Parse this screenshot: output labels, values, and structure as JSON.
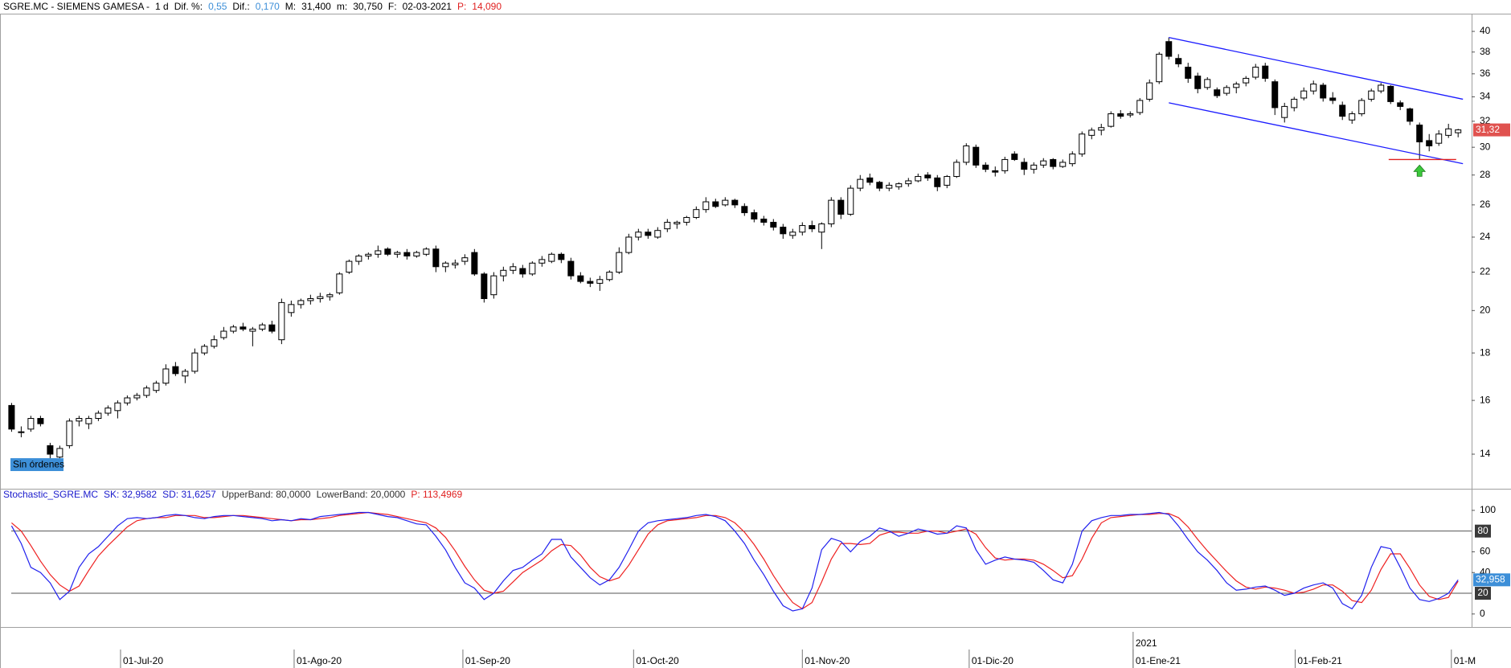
{
  "chart_data": [
    {
      "type": "candlestick",
      "title": [
        {
          "text": "SGRE.MC - SIEMENS GAMESA -",
          "color": "#000000"
        },
        {
          "text": "1 d",
          "color": "#000000"
        },
        {
          "text": "Dif. %:",
          "color": "#000000"
        },
        {
          "text": "0,55",
          "color": "#3d8fd8"
        },
        {
          "text": "Dif.:",
          "color": "#000000"
        },
        {
          "text": "0,170",
          "color": "#3d8fd8"
        },
        {
          "text": "M:",
          "color": "#000000"
        },
        {
          "text": "31,400",
          "color": "#000000"
        },
        {
          "text": "m:",
          "color": "#000000"
        },
        {
          "text": "30,750",
          "color": "#000000"
        },
        {
          "text": "F:",
          "color": "#000000"
        },
        {
          "text": "02-03-2021",
          "color": "#000000"
        },
        {
          "text": "P:",
          "color": "#e02020"
        },
        {
          "text": "14,090",
          "color": "#e02020"
        }
      ],
      "log": true,
      "xlim": [
        -1.2,
        151.4
      ],
      "ylim": [
        12.9,
        41.8
      ],
      "yticks": [
        14,
        16,
        18,
        20,
        22,
        24,
        26,
        28,
        30,
        32,
        34,
        36,
        38,
        40
      ],
      "up_color": "#ffffff",
      "down_color": "#000000",
      "open": [
        15.8,
        14.8,
        14.9,
        15.3,
        14.3,
        13.9,
        14.3,
        15.2,
        15.1,
        15.3,
        15.5,
        15.6,
        15.9,
        16.1,
        16.2,
        16.4,
        16.7,
        17.4,
        17.0,
        17.2,
        18.0,
        18.3,
        18.7,
        19.0,
        19.2,
        19.0,
        19.1,
        19.3,
        18.6,
        19.9,
        20.3,
        20.5,
        20.6,
        20.7,
        20.9,
        22.0,
        22.6,
        22.9,
        23.0,
        23.3,
        23.0,
        23.1,
        22.9,
        23.0,
        23.3,
        22.3,
        22.4,
        22.6,
        23.1,
        21.9,
        20.8,
        21.8,
        22.1,
        22.2,
        21.9,
        22.5,
        22.6,
        23.0,
        22.6,
        21.8,
        21.5,
        21.4,
        21.6,
        22.0,
        23.1,
        24.0,
        24.3,
        24.0,
        24.5,
        24.8,
        24.9,
        25.2,
        25.7,
        26.2,
        26.0,
        26.3,
        25.9,
        25.5,
        25.1,
        24.9,
        24.6,
        24.1,
        24.3,
        24.7,
        24.3,
        24.8,
        26.3,
        25.4,
        27.1,
        27.8,
        27.5,
        27.1,
        27.2,
        27.4,
        27.6,
        28.0,
        27.8,
        27.3,
        27.9,
        28.9,
        30.0,
        28.7,
        28.3,
        28.3,
        29.5,
        28.9,
        28.4,
        28.7,
        29.1,
        28.6,
        28.8,
        29.5,
        30.9,
        31.3,
        31.6,
        32.6,
        32.5,
        32.7,
        33.8,
        35.3,
        39.0,
        37.4,
        36.6,
        35.8,
        34.8,
        34.6,
        34.3,
        34.8,
        35.2,
        35.7,
        36.7,
        35.3,
        32.3,
        33.1,
        33.9,
        34.5,
        35.0,
        33.9,
        33.3,
        32.1,
        32.6,
        33.8,
        34.5,
        34.9,
        33.5,
        33.0,
        31.7,
        30.5,
        30.3,
        30.9,
        31.1
      ],
      "high": [
        15.9,
        15.0,
        15.4,
        15.4,
        14.4,
        14.3,
        15.3,
        15.4,
        15.4,
        15.6,
        15.8,
        16.0,
        16.2,
        16.3,
        16.6,
        16.8,
        17.5,
        17.6,
        17.3,
        18.2,
        18.4,
        18.8,
        19.2,
        19.3,
        19.4,
        19.2,
        19.4,
        19.5,
        20.6,
        20.5,
        20.6,
        20.8,
        20.9,
        20.9,
        22.0,
        22.7,
        23.0,
        23.1,
        23.5,
        23.4,
        23.2,
        23.3,
        23.2,
        23.4,
        23.5,
        22.6,
        22.7,
        23.0,
        23.3,
        22.0,
        22.0,
        22.3,
        22.5,
        22.4,
        22.6,
        22.9,
        23.1,
        23.1,
        22.8,
        22.0,
        21.7,
        21.8,
        22.1,
        23.4,
        24.2,
        24.5,
        24.5,
        24.6,
        25.1,
        25.0,
        25.3,
        25.9,
        26.5,
        26.4,
        26.5,
        26.4,
        26.1,
        25.7,
        25.3,
        25.1,
        24.8,
        24.5,
        24.9,
        25.0,
        24.9,
        26.5,
        26.5,
        27.3,
        28.0,
        28.1,
        27.6,
        27.5,
        27.5,
        27.8,
        28.1,
        28.2,
        28.0,
        28.0,
        29.1,
        30.3,
        30.2,
        28.9,
        28.6,
        29.3,
        29.7,
        29.2,
        28.9,
        29.2,
        29.2,
        29.1,
        29.7,
        31.2,
        31.5,
        31.8,
        32.8,
        32.9,
        32.8,
        33.9,
        35.5,
        38.0,
        39.4,
        37.8,
        37.0,
        36.1,
        35.7,
        34.8,
        35.0,
        35.3,
        35.8,
        36.9,
        37.0,
        35.5,
        33.5,
        34.0,
        34.8,
        35.4,
        35.2,
        34.4,
        33.6,
        32.8,
        33.9,
        34.7,
        35.2,
        35.0,
        33.7,
        33.1,
        31.9,
        31.0,
        31.3,
        31.8,
        31.4
      ],
      "low": [
        14.8,
        14.6,
        14.8,
        15.0,
        13.8,
        13.8,
        14.2,
        15.0,
        14.9,
        15.2,
        15.4,
        15.3,
        15.8,
        16.0,
        16.1,
        16.3,
        16.6,
        17.0,
        16.7,
        17.1,
        17.9,
        18.2,
        18.6,
        18.9,
        19.0,
        18.3,
        19.0,
        18.9,
        18.4,
        19.7,
        20.1,
        20.3,
        20.4,
        20.5,
        20.8,
        21.9,
        22.4,
        22.7,
        22.8,
        22.9,
        22.8,
        22.7,
        22.8,
        22.9,
        22.0,
        22.0,
        22.2,
        22.4,
        21.8,
        20.4,
        20.6,
        21.5,
        21.9,
        21.7,
        21.8,
        22.3,
        22.5,
        22.5,
        21.6,
        21.4,
        21.2,
        21.0,
        21.5,
        21.9,
        23.0,
        23.8,
        23.9,
        23.9,
        24.3,
        24.5,
        24.7,
        25.1,
        25.5,
        25.8,
        25.9,
        25.8,
        25.3,
        24.9,
        24.7,
        24.4,
        23.9,
        23.9,
        24.1,
        24.3,
        23.3,
        24.6,
        25.1,
        25.3,
        26.9,
        27.3,
        26.9,
        26.9,
        27.0,
        27.2,
        27.5,
        27.6,
        26.9,
        27.1,
        27.8,
        28.7,
        28.5,
        28.2,
        27.9,
        28.1,
        29.0,
        28.0,
        28.1,
        28.5,
        28.4,
        28.5,
        28.6,
        29.3,
        30.6,
        30.9,
        31.5,
        32.2,
        32.3,
        32.5,
        33.6,
        35.1,
        37.3,
        36.6,
        35.2,
        34.3,
        34.6,
        33.9,
        34.1,
        34.3,
        34.9,
        35.5,
        35.3,
        32.5,
        31.9,
        32.8,
        33.7,
        34.2,
        33.6,
        33.4,
        32.1,
        31.8,
        32.4,
        33.6,
        34.3,
        33.4,
        32.9,
        31.7,
        29.1,
        29.7,
        30.1,
        30.7,
        30.75
      ],
      "close": [
        14.9,
        14.8,
        15.3,
        15.1,
        14.0,
        14.2,
        15.2,
        15.3,
        15.3,
        15.5,
        15.7,
        15.9,
        16.1,
        16.2,
        16.5,
        16.7,
        17.3,
        17.1,
        17.2,
        18.0,
        18.3,
        18.6,
        19.0,
        19.2,
        19.1,
        19.1,
        19.3,
        19.0,
        20.4,
        20.3,
        20.5,
        20.6,
        20.7,
        20.8,
        21.9,
        22.6,
        22.9,
        23.0,
        23.2,
        23.0,
        23.1,
        22.9,
        23.1,
        23.3,
        22.3,
        22.5,
        22.5,
        22.8,
        21.9,
        20.6,
        21.8,
        22.1,
        22.3,
        21.9,
        22.5,
        22.7,
        23.0,
        22.7,
        21.8,
        21.5,
        21.4,
        21.6,
        22.0,
        23.1,
        24.0,
        24.3,
        24.1,
        24.4,
        24.9,
        24.9,
        25.2,
        25.7,
        26.2,
        25.9,
        26.3,
        26.0,
        25.5,
        25.1,
        24.9,
        24.6,
        24.2,
        24.3,
        24.7,
        24.5,
        24.8,
        26.3,
        25.4,
        27.1,
        27.7,
        27.5,
        27.1,
        27.3,
        27.4,
        27.6,
        27.9,
        27.8,
        27.2,
        27.9,
        28.9,
        30.1,
        28.7,
        28.4,
        28.2,
        29.1,
        29.1,
        28.4,
        28.7,
        29.0,
        28.6,
        28.9,
        29.5,
        31.0,
        31.3,
        31.5,
        32.6,
        32.4,
        32.6,
        33.7,
        35.2,
        37.8,
        37.6,
        36.9,
        35.6,
        34.7,
        35.5,
        34.1,
        34.8,
        35.1,
        35.6,
        36.6,
        35.6,
        33.1,
        33.2,
        33.8,
        34.5,
        35.1,
        33.9,
        33.7,
        32.4,
        32.6,
        33.7,
        34.5,
        35.0,
        33.6,
        33.2,
        32.0,
        30.4,
        30.1,
        31.0,
        31.4,
        31.32
      ],
      "price_marker": {
        "value": 31.32,
        "label": "31,32",
        "color": "#e0524f"
      },
      "trendlines": [
        {
          "x": [
            120,
            150.5
          ],
          "y": [
            39.4,
            33.8
          ],
          "color": "#1a1aff"
        },
        {
          "x": [
            120,
            150.5
          ],
          "y": [
            33.5,
            28.8
          ],
          "color": "#1a1aff"
        },
        {
          "x": [
            142.8,
            149.8
          ],
          "y": [
            29.1,
            29.1
          ],
          "color": "#e02020"
        }
      ],
      "arrows": [
        {
          "x": 146,
          "y": 28.7,
          "color": "#3cc83c"
        }
      ],
      "annotations": [
        {
          "text": "Sin órdenes",
          "color": "#3d8fd8"
        }
      ]
    },
    {
      "type": "line",
      "title": [
        {
          "text": "Stochastic_SGRE.MC",
          "color": "#1a1acc"
        },
        {
          "text": "SK: 32,9582",
          "color": "#1a1acc"
        },
        {
          "text": "SD: 31,6257",
          "color": "#1a1acc"
        },
        {
          "text": "UpperBand: 80,0000",
          "color": "#333333"
        },
        {
          "text": "LowerBand: 20,0000",
          "color": "#333333"
        },
        {
          "text": "P: 113,4969",
          "color": "#e02020"
        }
      ],
      "xlim": [
        -1.2,
        151.4
      ],
      "ylim": [
        -11,
        110
      ],
      "yticks": [
        0,
        40,
        60,
        100
      ],
      "bands": [
        {
          "value": 80,
          "label": "80"
        },
        {
          "value": 20,
          "label": "20"
        }
      ],
      "series": [
        {
          "name": "SD",
          "color": "#ee2020",
          "values": [
            88,
            80,
            66,
            51,
            38,
            28,
            22,
            27,
            42,
            56,
            66,
            75,
            84,
            90,
            92,
            93,
            93,
            95,
            95,
            95,
            93,
            93,
            94,
            95,
            95,
            94,
            93,
            92,
            91,
            90,
            91,
            91,
            92,
            93,
            95,
            96,
            97,
            98,
            97,
            96,
            94,
            92,
            90,
            88,
            83,
            74,
            61,
            46,
            33,
            23,
            20,
            22,
            31,
            40,
            46,
            52,
            61,
            67,
            66,
            57,
            45,
            36,
            32,
            35,
            47,
            62,
            77,
            86,
            90,
            91,
            92,
            93,
            95,
            95,
            93,
            88,
            79,
            67,
            53,
            37,
            23,
            11,
            5,
            11,
            31,
            53,
            68,
            68,
            67,
            68,
            76,
            79,
            79,
            78,
            78,
            80,
            80,
            78,
            80,
            82,
            77,
            64,
            54,
            52,
            53,
            53,
            52,
            48,
            42,
            35,
            37,
            53,
            73,
            88,
            93,
            94,
            95,
            96,
            96,
            97,
            97,
            93,
            84,
            72,
            61,
            51,
            41,
            32,
            26,
            24,
            26,
            25,
            23,
            20,
            21,
            24,
            28,
            28,
            22,
            13,
            11,
            23,
            43,
            58,
            58,
            44,
            28,
            17,
            14,
            16,
            31.6257
          ]
        },
        {
          "name": "SK",
          "color": "#2020ee",
          "values": [
            85,
            68,
            45,
            40,
            30,
            14,
            22,
            45,
            58,
            65,
            75,
            85,
            92,
            93,
            92,
            93,
            95,
            96,
            95,
            93,
            92,
            94,
            95,
            95,
            94,
            93,
            92,
            90,
            91,
            90,
            92,
            91,
            94,
            95,
            96,
            97,
            98,
            98,
            96,
            94,
            93,
            90,
            87,
            86,
            75,
            62,
            45,
            30,
            25,
            14,
            20,
            32,
            42,
            45,
            52,
            58,
            72,
            72,
            55,
            45,
            35,
            28,
            33,
            45,
            62,
            80,
            88,
            90,
            91,
            92,
            93,
            95,
            96,
            94,
            90,
            80,
            68,
            52,
            38,
            22,
            8,
            3,
            5,
            25,
            62,
            73,
            70,
            60,
            70,
            75,
            83,
            80,
            75,
            78,
            82,
            80,
            77,
            78,
            85,
            83,
            62,
            48,
            52,
            55,
            53,
            52,
            50,
            42,
            33,
            30,
            48,
            80,
            90,
            93,
            95,
            95,
            96,
            96,
            97,
            98,
            96,
            85,
            72,
            60,
            52,
            42,
            30,
            23,
            24,
            26,
            27,
            23,
            18,
            20,
            25,
            28,
            30,
            25,
            10,
            5,
            18,
            45,
            65,
            63,
            45,
            25,
            14,
            12,
            15,
            20,
            32.9582
          ]
        }
      ],
      "value_marker": {
        "value": 32.958,
        "label": "32,958",
        "color": "#3d8fd8"
      },
      "xticks": [
        {
          "value": 11.3,
          "label": "01-Jul-20"
        },
        {
          "value": 29.3,
          "label": "01-Ago-20"
        },
        {
          "value": 46.8,
          "label": "01-Sep-20"
        },
        {
          "value": 64.5,
          "label": "01-Oct-20"
        },
        {
          "value": 82,
          "label": "01-Nov-20"
        },
        {
          "value": 99.3,
          "label": "01-Dic-20"
        },
        {
          "value": 116.3,
          "label": "01-Ene-21"
        },
        {
          "value": 133.1,
          "label": "01-Feb-21"
        },
        {
          "value": 149.3,
          "label": "01-M"
        }
      ],
      "year_ticks": [
        {
          "value": 116.3,
          "label": "2021"
        }
      ]
    }
  ]
}
